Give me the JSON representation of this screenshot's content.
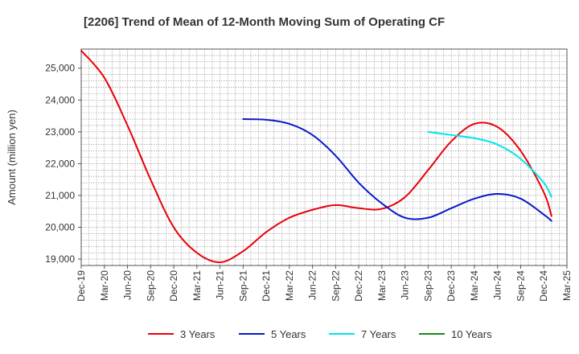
{
  "chart_data": {
    "type": "line",
    "title": "[2206]  Trend of Mean of 12-Month Moving Sum of Operating CF",
    "xlabel": "",
    "ylabel": "Amount (million yen)",
    "ylim": [
      18800,
      25600
    ],
    "yticks": [
      19000,
      20000,
      21000,
      22000,
      23000,
      24000,
      25000
    ],
    "ytick_labels": [
      "19,000",
      "20,000",
      "21,000",
      "22,000",
      "23,000",
      "24,000",
      "25,000"
    ],
    "x_tick_labels": [
      "Dec-19",
      "Mar-20",
      "Jun-20",
      "Sep-20",
      "Dec-20",
      "Mar-21",
      "Jun-21",
      "Sep-21",
      "Dec-21",
      "Mar-22",
      "Jun-22",
      "Sep-22",
      "Dec-22",
      "Mar-23",
      "Jun-23",
      "Sep-23",
      "Dec-23",
      "Mar-24",
      "Jun-24",
      "Sep-24",
      "Dec-24",
      "Mar-25"
    ],
    "x_range_months": [
      0,
      63
    ],
    "grid": true,
    "legend_position": "bottom",
    "series": [
      {
        "name": "3 Years",
        "color": "#e8000b",
        "points": [
          [
            0,
            25550
          ],
          [
            3,
            24700
          ],
          [
            6,
            23200
          ],
          [
            9,
            21500
          ],
          [
            12,
            20000
          ],
          [
            15,
            19200
          ],
          [
            18,
            18900
          ],
          [
            21,
            19250
          ],
          [
            24,
            19850
          ],
          [
            27,
            20300
          ],
          [
            30,
            20550
          ],
          [
            33,
            20700
          ],
          [
            36,
            20600
          ],
          [
            39,
            20580
          ],
          [
            42,
            20950
          ],
          [
            45,
            21800
          ],
          [
            48,
            22700
          ],
          [
            51,
            23250
          ],
          [
            54,
            23150
          ],
          [
            57,
            22400
          ],
          [
            60,
            21100
          ],
          [
            61,
            20350
          ]
        ]
      },
      {
        "name": "5 Years",
        "color": "#0a19c8",
        "points": [
          [
            21,
            23400
          ],
          [
            24,
            23380
          ],
          [
            27,
            23250
          ],
          [
            30,
            22900
          ],
          [
            33,
            22250
          ],
          [
            36,
            21400
          ],
          [
            39,
            20750
          ],
          [
            42,
            20300
          ],
          [
            45,
            20300
          ],
          [
            48,
            20600
          ],
          [
            51,
            20900
          ],
          [
            54,
            21050
          ],
          [
            57,
            20900
          ],
          [
            60,
            20400
          ],
          [
            61,
            20200
          ]
        ]
      },
      {
        "name": "7 Years",
        "color": "#00e5e8",
        "points": [
          [
            45,
            23000
          ],
          [
            48,
            22900
          ],
          [
            51,
            22800
          ],
          [
            54,
            22600
          ],
          [
            57,
            22150
          ],
          [
            60,
            21400
          ],
          [
            61,
            20950
          ]
        ]
      },
      {
        "name": "10 Years",
        "color": "#1a8a1a",
        "points": []
      }
    ]
  }
}
